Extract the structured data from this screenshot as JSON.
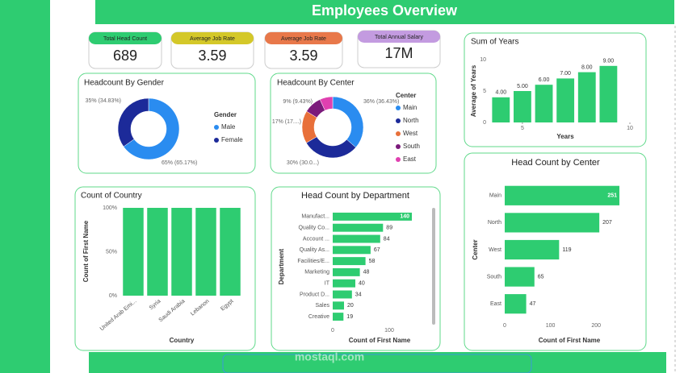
{
  "title": "Employees Overview",
  "watermark": "mostaql.com",
  "kpis": [
    {
      "label": "Total Head Count",
      "value": 689,
      "color": "#2ecc71"
    },
    {
      "label": "Average Job Rate",
      "value": 3.59,
      "color": "#d4c829"
    },
    {
      "label": "Average Job Rate",
      "value": 3.59,
      "color": "#e8784a"
    },
    {
      "label": "Total Annual Salary",
      "value": "17M",
      "color": "#c39be0"
    }
  ],
  "chart_data": [
    {
      "type": "donut",
      "title": "Headcount By Gender",
      "legend_title": "Gender",
      "categories": [
        "Male",
        "Female"
      ],
      "values": [
        65.17,
        34.83
      ],
      "value_labels": [
        "65% (65.17%)",
        "35% (34.83%)"
      ],
      "colors": [
        "#2a8cf0",
        "#1c2a99"
      ]
    },
    {
      "type": "donut",
      "title": "Headcount By Center",
      "legend_title": "Center",
      "categories": [
        "Main",
        "North",
        "West",
        "South",
        "East"
      ],
      "values": [
        36.43,
        30.04,
        17.27,
        9.43,
        6.82
      ],
      "value_labels": [
        "36% (36.43%)",
        "30% (30.0...)",
        "17% (17....)",
        "9% (9.43%)",
        null
      ],
      "colors": [
        "#2a8cf0",
        "#1c2a99",
        "#e8703a",
        "#7b1a7b",
        "#e040b0"
      ]
    },
    {
      "type": "bar",
      "title": "Sum of Years",
      "x_label": "Years",
      "y_label": "Average of Years",
      "x": [
        4,
        5,
        6,
        7,
        8,
        9
      ],
      "values": [
        4,
        5,
        6,
        7,
        8,
        9
      ],
      "value_labels": [
        "4.00",
        "5.00",
        "6.00",
        "7.00",
        "8.00",
        "9.00"
      ],
      "xlim": [
        3.5,
        10
      ],
      "xticks": [
        5,
        10
      ],
      "ylim": [
        0,
        10
      ],
      "yticks": [
        0,
        5,
        10
      ],
      "color": "#2ecc71"
    },
    {
      "type": "bar",
      "title": "Count of Country",
      "x_label": "Country",
      "y_label": "Count of First Name",
      "categories": [
        "United Arab Emi...",
        "Syria",
        "Saudi Arabia",
        "Lebanon",
        "Egypt"
      ],
      "values": [
        100,
        100,
        100,
        100,
        100
      ],
      "ylim": [
        0,
        100
      ],
      "yticks": [
        {
          "value": 0,
          "label": "0%"
        },
        {
          "value": 50,
          "label": "50%"
        },
        {
          "value": 100,
          "label": "100%"
        }
      ],
      "color": "#2ecc71"
    },
    {
      "type": "hbar",
      "title": "Head Count by Department",
      "x_label": "Count of First Name",
      "y_label": "Department",
      "categories": [
        "Manufact...",
        "Quality Co...",
        "Account ...",
        "Quality As...",
        "Facilities/E...",
        "Marketing",
        "IT",
        "Product D...",
        "Sales",
        "Creative"
      ],
      "values": [
        140,
        89,
        84,
        67,
        58,
        48,
        40,
        34,
        20,
        19
      ],
      "xlim": [
        0,
        170
      ],
      "xticks": [
        0,
        100
      ],
      "color": "#2ecc71"
    },
    {
      "type": "hbar",
      "title": "Head Count by Center",
      "x_label": "Count of First Name",
      "y_label": "Center",
      "categories": [
        "Main",
        "North",
        "West",
        "South",
        "East"
      ],
      "values": [
        251,
        207,
        119,
        65,
        47
      ],
      "xlim": [
        0,
        275
      ],
      "xticks": [
        0,
        100,
        200
      ],
      "color": "#2ecc71"
    }
  ]
}
